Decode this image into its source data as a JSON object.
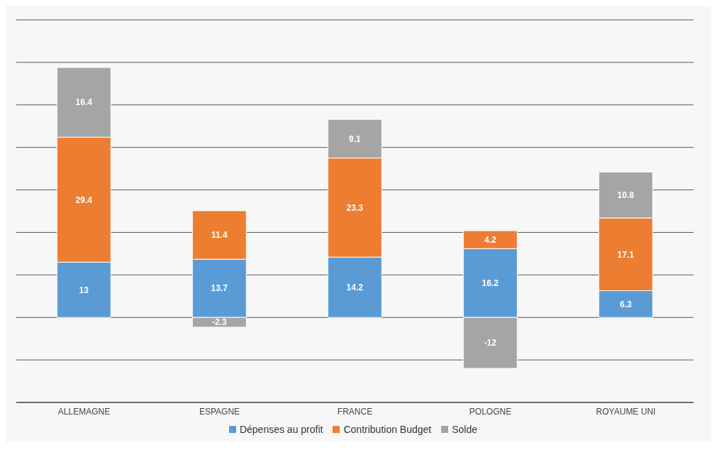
{
  "chart_data": {
    "type": "bar",
    "stacked": true,
    "categories": [
      "ALLEMAGNE",
      "ESPAGNE",
      "FRANCE",
      "POLOGNE",
      "ROYAUME UNI"
    ],
    "series": [
      {
        "name": "Dépenses au profit",
        "color": "#5b9bd5",
        "values": [
          13,
          13.7,
          14.2,
          16.2,
          6.3
        ]
      },
      {
        "name": "Contribution Budget",
        "color": "#ed7d31",
        "values": [
          29.4,
          11.4,
          23.3,
          4.2,
          17.1
        ]
      },
      {
        "name": "Solde",
        "color": "#a5a5a5",
        "values": [
          16.4,
          -2.3,
          9.1,
          -12,
          10.8
        ]
      }
    ],
    "ylim": [
      -20,
      70
    ],
    "yticks": [
      {
        "value": -20,
        "label": null
      },
      {
        "value": -10,
        "label": null
      },
      {
        "value": 0,
        "label": null
      },
      {
        "value": 10,
        "label": null
      },
      {
        "value": 20,
        "label": null
      },
      {
        "value": 30,
        "label": null
      },
      {
        "value": 40,
        "label": null
      },
      {
        "value": 50,
        "label": null
      },
      {
        "value": 60,
        "label": null
      },
      {
        "value": 70,
        "label": null
      }
    ],
    "grid": "y",
    "legend": "bottom",
    "data_labels": true,
    "tick_labels": "x"
  }
}
